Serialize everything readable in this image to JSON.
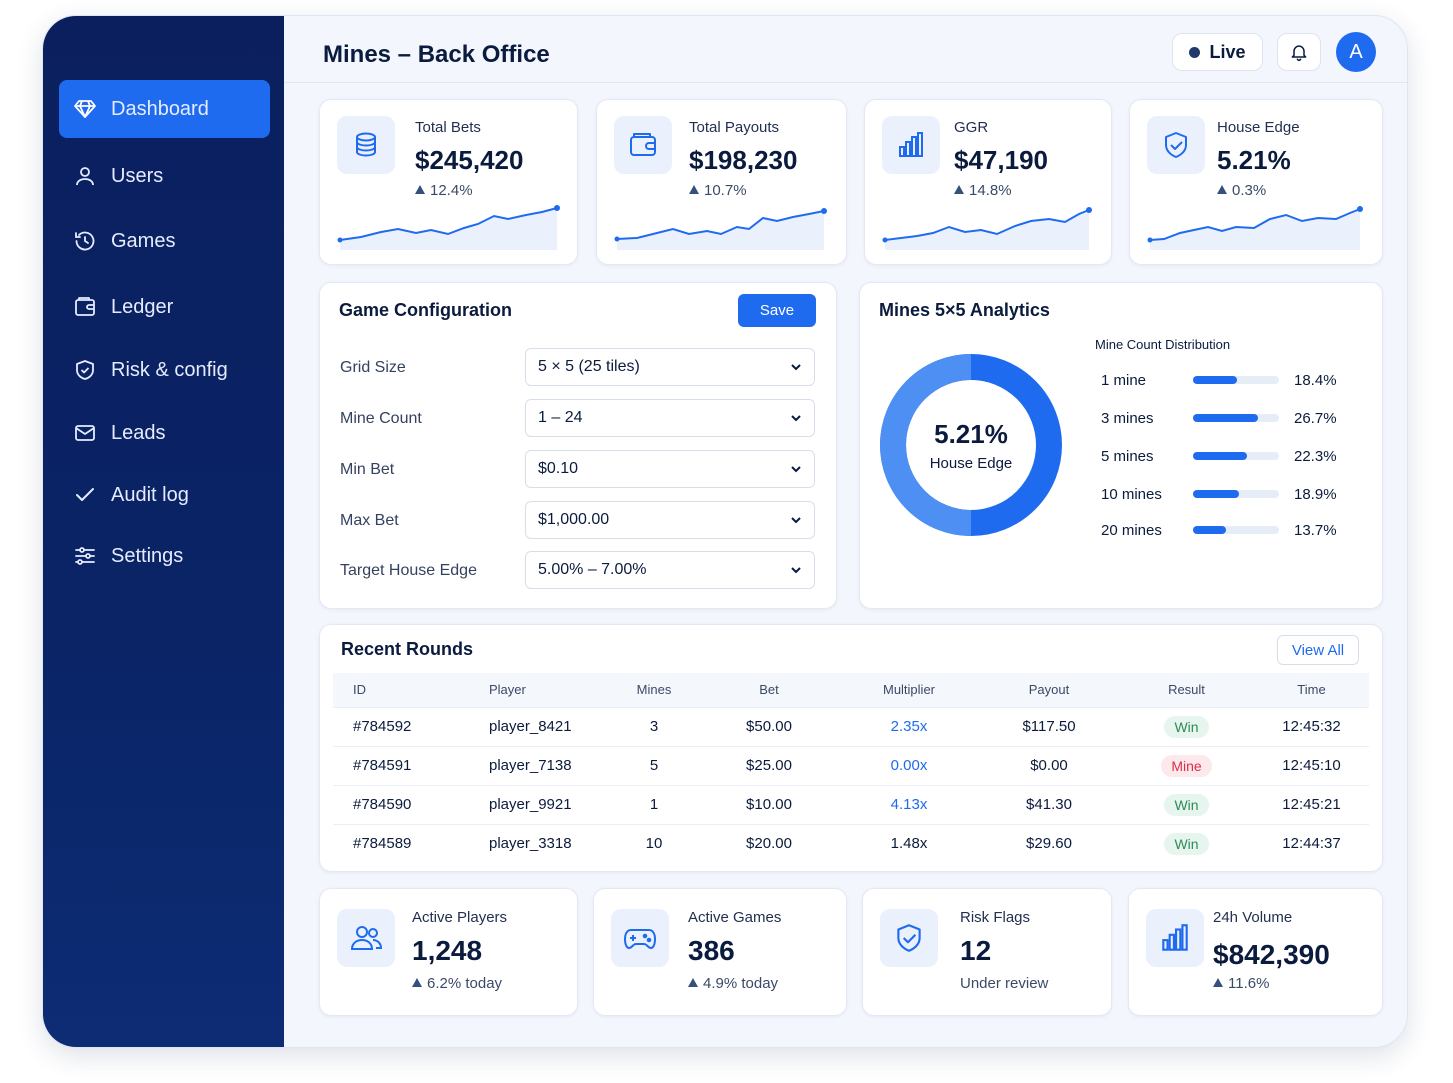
{
  "app": {
    "title": "Mines – Back Office",
    "live_label": "Live",
    "avatar_initial": "A"
  },
  "sidebar": {
    "items": [
      {
        "label": "Dashboard",
        "icon": "diamond-icon"
      },
      {
        "label": "Users",
        "icon": "user-icon"
      },
      {
        "label": "Games",
        "icon": "history-icon"
      },
      {
        "label": "Ledger",
        "icon": "wallet-icon"
      },
      {
        "label": "Risk & config",
        "icon": "shield-icon"
      },
      {
        "label": "Leads",
        "icon": "mail-icon"
      },
      {
        "label": "Audit log",
        "icon": "check-icon"
      },
      {
        "label": "Settings",
        "icon": "sliders-icon"
      }
    ]
  },
  "kpis": [
    {
      "label": "Total Bets",
      "value": "$245,420",
      "delta": "12.4%",
      "icon": "coins-icon"
    },
    {
      "label": "Total Payouts",
      "value": "$198,230",
      "delta": "10.7%",
      "icon": "wallet-icon"
    },
    {
      "label": "GGR",
      "value": "$47,190",
      "delta": "14.8%",
      "icon": "bar-chart-icon"
    },
    {
      "label": "House Edge",
      "value": "5.21%",
      "delta": "0.3%",
      "icon": "shield-check-icon"
    }
  ],
  "config": {
    "title": "Game Configuration",
    "save_label": "Save",
    "fields": [
      {
        "label": "Grid Size",
        "value": "5 × 5 (25 tiles)"
      },
      {
        "label": "Mine Count",
        "value": "1 – 24"
      },
      {
        "label": "Min Bet",
        "value": "$0.10"
      },
      {
        "label": "Max Bet",
        "value": "$1,000.00"
      },
      {
        "label": "Target House Edge",
        "value": "5.00% – 7.00%"
      }
    ]
  },
  "analytics": {
    "title": "Mines 5×5 Analytics",
    "donut_value": "5.21%",
    "donut_label": "House Edge",
    "dist_title": "Mine Count Distribution",
    "distribution": [
      {
        "label": "1 mine",
        "pct": "18.4%",
        "value": 18.4
      },
      {
        "label": "3 mines",
        "pct": "26.7%",
        "value": 26.7
      },
      {
        "label": "5 mines",
        "pct": "22.3%",
        "value": 22.3
      },
      {
        "label": "10 mines",
        "pct": "18.9%",
        "value": 18.9
      },
      {
        "label": "20 mines",
        "pct": "13.7%",
        "value": 13.7
      }
    ]
  },
  "rounds": {
    "title": "Recent Rounds",
    "view_all": "View All",
    "columns": [
      "ID",
      "Player",
      "Mines",
      "Bet",
      "Multiplier",
      "Payout",
      "Result",
      "Time"
    ],
    "rows": [
      {
        "id": "#784592",
        "player": "player_8421",
        "mines": "3",
        "bet": "$50.00",
        "multiplier": "2.35x",
        "payout": "$117.50",
        "result": "Win",
        "time": "12:45:32"
      },
      {
        "id": "#784591",
        "player": "player_7138",
        "mines": "5",
        "bet": "$25.00",
        "multiplier": "0.00x",
        "payout": "$0.00",
        "result": "Mine",
        "time": "12:45:10"
      },
      {
        "id": "#784590",
        "player": "player_9921",
        "mines": "1",
        "bet": "$10.00",
        "multiplier": "4.13x",
        "payout": "$41.30",
        "result": "Win",
        "time": "12:45:21"
      },
      {
        "id": "#784589",
        "player": "player_3318",
        "mines": "10",
        "bet": "$20.00",
        "multiplier": "1.48x",
        "payout": "$29.60",
        "result": "Win",
        "time": "12:44:37"
      }
    ]
  },
  "bottom": [
    {
      "label": "Active Players",
      "value": "1,248",
      "sub": "6.2% today",
      "icon": "users-icon"
    },
    {
      "label": "Active Games",
      "value": "386",
      "sub": "4.9% today",
      "icon": "gamepad-icon"
    },
    {
      "label": "Risk Flags",
      "value": "12",
      "sub": "Under review",
      "icon": "shield-check-icon"
    },
    {
      "label": "24h Volume",
      "value": "$842,390",
      "sub": "11.6%",
      "icon": "bar-chart-icon"
    }
  ],
  "colors": {
    "primary": "#1f6bf0",
    "sidebar": "#0b1f5e",
    "win": "#2f8a58",
    "mine": "#d8304a"
  }
}
